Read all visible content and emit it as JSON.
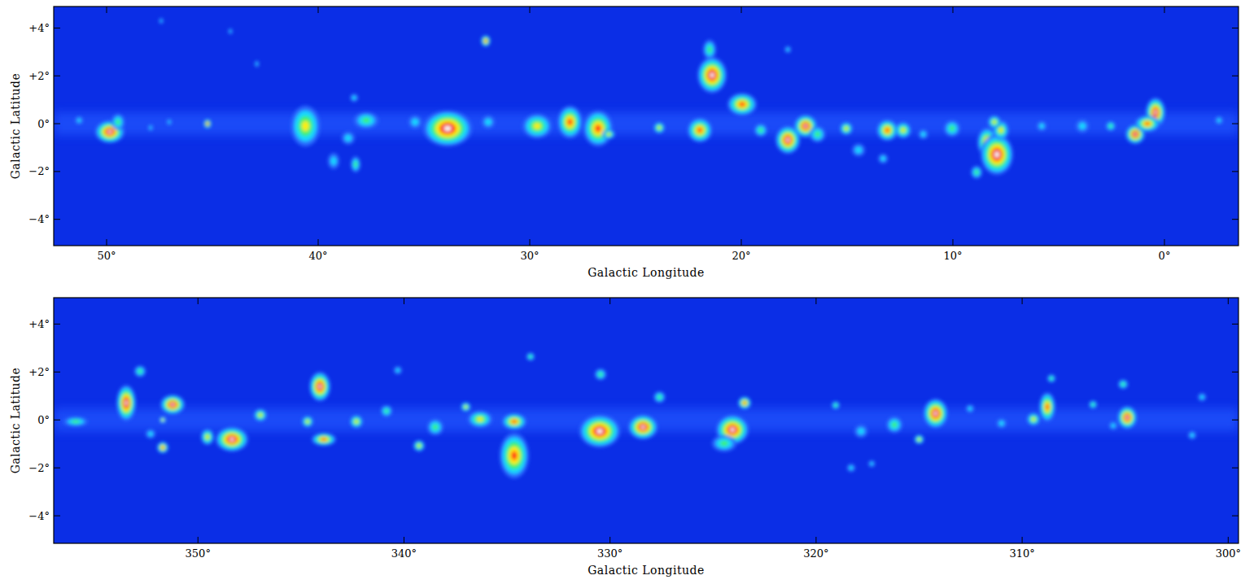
{
  "chart_data": [
    {
      "type": "heatmap",
      "x_label": "Galactic Longitude",
      "y_label": "Galactic Latitude",
      "xlim": [
        52.5,
        -3.5
      ],
      "ylim": [
        -5.1,
        4.9
      ],
      "xticks": [
        {
          "value": 50,
          "label": "50°"
        },
        {
          "value": 40,
          "label": "40°"
        },
        {
          "value": 30,
          "label": "30°"
        },
        {
          "value": 20,
          "label": "20°"
        },
        {
          "value": 10,
          "label": "10°"
        },
        {
          "value": 0,
          "label": "0°"
        }
      ],
      "yticks": [
        {
          "value": 4,
          "label": "+4°"
        },
        {
          "value": 2,
          "label": "+2°"
        },
        {
          "value": 0,
          "label": "0°"
        },
        {
          "value": -2,
          "label": "−2°"
        },
        {
          "value": -4,
          "label": "−4°"
        }
      ],
      "sources": [
        {
          "l": 49.85,
          "b": -0.34,
          "w": 0.69,
          "h": 0.47,
          "peak": 6
        },
        {
          "l": 49.46,
          "b": 0.07,
          "w": 0.31,
          "h": 0.34,
          "peak": 3
        },
        {
          "l": 51.3,
          "b": 0.14,
          "w": 0.19,
          "h": 0.17,
          "peak": 2
        },
        {
          "l": 47.92,
          "b": -0.17,
          "w": 0.12,
          "h": 0.14,
          "peak": 2
        },
        {
          "l": 47.04,
          "b": 0.07,
          "w": 0.12,
          "h": 0.14,
          "peak": 2
        },
        {
          "l": 45.23,
          "b": 0,
          "w": 0.19,
          "h": 0.2,
          "peak": 5
        },
        {
          "l": 47.42,
          "b": 4.3,
          "w": 0.1,
          "h": 0.12,
          "peak": 2
        },
        {
          "l": 44.15,
          "b": 3.86,
          "w": 0.1,
          "h": 0.12,
          "peak": 2
        },
        {
          "l": 42.9,
          "b": 2.5,
          "w": 0.1,
          "h": 0.14,
          "peak": 2
        },
        {
          "l": 40.6,
          "b": -0.1,
          "w": 0.69,
          "h": 0.85,
          "peak": 4
        },
        {
          "l": 39.27,
          "b": -1.56,
          "w": 0.27,
          "h": 0.34,
          "peak": 2
        },
        {
          "l": 38.23,
          "b": -1.7,
          "w": 0.23,
          "h": 0.34,
          "peak": 3
        },
        {
          "l": 38.3,
          "b": 1.08,
          "w": 0.19,
          "h": 0.17,
          "peak": 2
        },
        {
          "l": 37.73,
          "b": 0.14,
          "w": 0.58,
          "h": 0.34,
          "peak": 3
        },
        {
          "l": 38.58,
          "b": -0.6,
          "w": 0.31,
          "h": 0.27,
          "peak": 2
        },
        {
          "l": 32.08,
          "b": 3.46,
          "w": 0.23,
          "h": 0.24,
          "peak": 5
        },
        {
          "l": 33.88,
          "b": -0.2,
          "w": 1.15,
          "h": 0.75,
          "peak": 6
        },
        {
          "l": 31.96,
          "b": 0.07,
          "w": 0.31,
          "h": 0.27,
          "peak": 2
        },
        {
          "l": 35.42,
          "b": 0.07,
          "w": 0.31,
          "h": 0.27,
          "peak": 2
        },
        {
          "l": 29.65,
          "b": -0.1,
          "w": 0.69,
          "h": 0.51,
          "peak": 4
        },
        {
          "l": 28.1,
          "b": 0.07,
          "w": 0.58,
          "h": 0.68,
          "peak": 5
        },
        {
          "l": 26.77,
          "b": -0.2,
          "w": 0.69,
          "h": 0.75,
          "peak": 5
        },
        {
          "l": 26.27,
          "b": -0.44,
          "w": 0.31,
          "h": 0.2,
          "peak": 4
        },
        {
          "l": 23.88,
          "b": -0.17,
          "w": 0.27,
          "h": 0.24,
          "peak": 4
        },
        {
          "l": 21.96,
          "b": -0.27,
          "w": 0.58,
          "h": 0.51,
          "peak": 5
        },
        {
          "l": 21.38,
          "b": 2.03,
          "w": 0.69,
          "h": 0.75,
          "peak": 6
        },
        {
          "l": 21.5,
          "b": 3.1,
          "w": 0.31,
          "h": 0.41,
          "peak": 3
        },
        {
          "l": 19.96,
          "b": 0.81,
          "w": 0.69,
          "h": 0.47,
          "peak": 5
        },
        {
          "l": 17.8,
          "b": -0.68,
          "w": 0.58,
          "h": 0.58,
          "peak": 6
        },
        {
          "l": 16.96,
          "b": -0.1,
          "w": 0.54,
          "h": 0.47,
          "peak": 6
        },
        {
          "l": 19.08,
          "b": -0.27,
          "w": 0.31,
          "h": 0.27,
          "peak": 3
        },
        {
          "l": 16.4,
          "b": -0.44,
          "w": 0.38,
          "h": 0.34,
          "peak": 3
        },
        {
          "l": 17.8,
          "b": 3.1,
          "w": 0.15,
          "h": 0.14,
          "peak": 2
        },
        {
          "l": 15.04,
          "b": -0.2,
          "w": 0.31,
          "h": 0.27,
          "peak": 4
        },
        {
          "l": 13.1,
          "b": -0.27,
          "w": 0.5,
          "h": 0.44,
          "peak": 5
        },
        {
          "l": 12.35,
          "b": -0.27,
          "w": 0.38,
          "h": 0.34,
          "peak": 4
        },
        {
          "l": 14.46,
          "b": -1.1,
          "w": 0.31,
          "h": 0.27,
          "peak": 2
        },
        {
          "l": 10.04,
          "b": -0.2,
          "w": 0.38,
          "h": 0.34,
          "peak": 3
        },
        {
          "l": 8.38,
          "b": -0.78,
          "w": 0.46,
          "h": 0.61,
          "peak": 5
        },
        {
          "l": 7.92,
          "b": -1.29,
          "w": 0.77,
          "h": 0.85,
          "peak": 6
        },
        {
          "l": 7.73,
          "b": -0.27,
          "w": 0.38,
          "h": 0.41,
          "peak": 4
        },
        {
          "l": 8.88,
          "b": -2.03,
          "w": 0.27,
          "h": 0.27,
          "peak": 3
        },
        {
          "l": 8.04,
          "b": 0.07,
          "w": 0.31,
          "h": 0.27,
          "peak": 4
        },
        {
          "l": 5.8,
          "b": -0.1,
          "w": 0.23,
          "h": 0.2,
          "peak": 2
        },
        {
          "l": 3.88,
          "b": -0.1,
          "w": 0.31,
          "h": 0.27,
          "peak": 2
        },
        {
          "l": 2.54,
          "b": -0.1,
          "w": 0.23,
          "h": 0.2,
          "peak": 3
        },
        {
          "l": 1.38,
          "b": -0.44,
          "w": 0.46,
          "h": 0.41,
          "peak": 6
        },
        {
          "l": 0.42,
          "b": 0.47,
          "w": 0.46,
          "h": 0.61,
          "peak": 6
        },
        {
          "l": 0.81,
          "b": 0,
          "w": 0.58,
          "h": 0.34,
          "peak": 5
        },
        {
          "l": -2.58,
          "b": 0.14,
          "w": 0.19,
          "h": 0.17,
          "peak": 2
        },
        {
          "l": 13.3,
          "b": -1.46,
          "w": 0.23,
          "h": 0.2,
          "peak": 2
        },
        {
          "l": 11.4,
          "b": -0.44,
          "w": 0.23,
          "h": 0.2,
          "peak": 2
        }
      ]
    },
    {
      "type": "heatmap",
      "x_label": "Galactic Longitude",
      "y_label": "Galactic Latitude",
      "xlim": [
        357,
        299.5
      ],
      "ylim": [
        -5.15,
        5.1
      ],
      "xticks": [
        {
          "value": 350,
          "label": "350°"
        },
        {
          "value": 340,
          "label": "340°"
        },
        {
          "value": 330,
          "label": "330°"
        },
        {
          "value": 320,
          "label": "320°"
        },
        {
          "value": 310,
          "label": "310°"
        },
        {
          "value": 300,
          "label": "300°"
        }
      ],
      "yticks": [
        {
          "value": 4,
          "label": "+4°"
        },
        {
          "value": 2,
          "label": "+2°"
        },
        {
          "value": 0,
          "label": "0°"
        },
        {
          "value": -2,
          "label": "−2°"
        },
        {
          "value": -4,
          "label": "−4°"
        }
      ],
      "sources": [
        {
          "l": 353.48,
          "b": 0.71,
          "w": 0.47,
          "h": 0.75,
          "peak": 6
        },
        {
          "l": 351.23,
          "b": 0.64,
          "w": 0.59,
          "h": 0.41,
          "peak": 6
        },
        {
          "l": 352.81,
          "b": 2.03,
          "w": 0.28,
          "h": 0.24,
          "peak": 3
        },
        {
          "l": 351.71,
          "b": -1.15,
          "w": 0.28,
          "h": 0.24,
          "peak": 5
        },
        {
          "l": 351.71,
          "b": 0,
          "w": 0.16,
          "h": 0.14,
          "peak": 4
        },
        {
          "l": 352.3,
          "b": -0.58,
          "w": 0.24,
          "h": 0.2,
          "peak": 2
        },
        {
          "l": 349.54,
          "b": -0.71,
          "w": 0.32,
          "h": 0.34,
          "peak": 4
        },
        {
          "l": 348.35,
          "b": -0.81,
          "w": 0.79,
          "h": 0.51,
          "peak": 6
        },
        {
          "l": 346.97,
          "b": 0.2,
          "w": 0.32,
          "h": 0.27,
          "peak": 4
        },
        {
          "l": 344.68,
          "b": -0.07,
          "w": 0.28,
          "h": 0.24,
          "peak": 4
        },
        {
          "l": 344.08,
          "b": 1.39,
          "w": 0.51,
          "h": 0.61,
          "peak": 6
        },
        {
          "l": 343.89,
          "b": -0.81,
          "w": 0.59,
          "h": 0.27,
          "peak": 5
        },
        {
          "l": 342.31,
          "b": -0.07,
          "w": 0.32,
          "h": 0.27,
          "peak": 4
        },
        {
          "l": 340.85,
          "b": 0.37,
          "w": 0.28,
          "h": 0.24,
          "peak": 3
        },
        {
          "l": 339.27,
          "b": -1.08,
          "w": 0.28,
          "h": 0.24,
          "peak": 4
        },
        {
          "l": 338.48,
          "b": -0.3,
          "w": 0.39,
          "h": 0.34,
          "peak": 3
        },
        {
          "l": 337.0,
          "b": 0.54,
          "w": 0.24,
          "h": 0.2,
          "peak": 4
        },
        {
          "l": 336.31,
          "b": 0.03,
          "w": 0.59,
          "h": 0.34,
          "peak": 4
        },
        {
          "l": 334.65,
          "b": -0.07,
          "w": 0.59,
          "h": 0.34,
          "peak": 5
        },
        {
          "l": 334.65,
          "b": -1.49,
          "w": 0.71,
          "h": 0.95,
          "peak": 5
        },
        {
          "l": 333.86,
          "b": 2.64,
          "w": 0.2,
          "h": 0.17,
          "peak": 3
        },
        {
          "l": 330.5,
          "b": -0.47,
          "w": 0.99,
          "h": 0.68,
          "peak": 6
        },
        {
          "l": 330.46,
          "b": 1.9,
          "w": 0.28,
          "h": 0.24,
          "peak": 3
        },
        {
          "l": 328.4,
          "b": -0.3,
          "w": 0.71,
          "h": 0.51,
          "peak": 6
        },
        {
          "l": 327.6,
          "b": 0.95,
          "w": 0.28,
          "h": 0.24,
          "peak": 3
        },
        {
          "l": 324.06,
          "b": -0.41,
          "w": 0.79,
          "h": 0.61,
          "peak": 6
        },
        {
          "l": 323.47,
          "b": 0.71,
          "w": 0.32,
          "h": 0.27,
          "peak": 5
        },
        {
          "l": 324.46,
          "b": -0.98,
          "w": 0.59,
          "h": 0.34,
          "peak": 3
        },
        {
          "l": 319.05,
          "b": 0.61,
          "w": 0.2,
          "h": 0.17,
          "peak": 3
        },
        {
          "l": 317.82,
          "b": -0.47,
          "w": 0.32,
          "h": 0.27,
          "peak": 2
        },
        {
          "l": 316.2,
          "b": -0.2,
          "w": 0.39,
          "h": 0.34,
          "peak": 3
        },
        {
          "l": 315.0,
          "b": -0.81,
          "w": 0.24,
          "h": 0.2,
          "peak": 4
        },
        {
          "l": 314.2,
          "b": 0.27,
          "w": 0.59,
          "h": 0.61,
          "peak": 6
        },
        {
          "l": 312.53,
          "b": 0.47,
          "w": 0.2,
          "h": 0.17,
          "peak": 2
        },
        {
          "l": 309.45,
          "b": 0.03,
          "w": 0.32,
          "h": 0.27,
          "peak": 4
        },
        {
          "l": 308.78,
          "b": 0.54,
          "w": 0.39,
          "h": 0.61,
          "peak": 5
        },
        {
          "l": 308.58,
          "b": 1.73,
          "w": 0.2,
          "h": 0.17,
          "peak": 3
        },
        {
          "l": 306.56,
          "b": 0.64,
          "w": 0.2,
          "h": 0.17,
          "peak": 3
        },
        {
          "l": 304.9,
          "b": 0.1,
          "w": 0.47,
          "h": 0.47,
          "peak": 6
        },
        {
          "l": 305.1,
          "b": 1.49,
          "w": 0.24,
          "h": 0.2,
          "peak": 3
        },
        {
          "l": 301.27,
          "b": 0.95,
          "w": 0.2,
          "h": 0.17,
          "peak": 2
        },
        {
          "l": 301.75,
          "b": -0.64,
          "w": 0.2,
          "h": 0.17,
          "peak": 2
        },
        {
          "l": 305.58,
          "b": -0.24,
          "w": 0.2,
          "h": 0.17,
          "peak": 2
        },
        {
          "l": 317.3,
          "b": -1.83,
          "w": 0.16,
          "h": 0.14,
          "peak": 2
        },
        {
          "l": 318.3,
          "b": -2.0,
          "w": 0.2,
          "h": 0.17,
          "peak": 2
        },
        {
          "l": 355.93,
          "b": -0.07,
          "w": 0.59,
          "h": 0.2,
          "peak": 3
        },
        {
          "l": 311.0,
          "b": -0.14,
          "w": 0.24,
          "h": 0.2,
          "peak": 2
        },
        {
          "l": 340.3,
          "b": 2.07,
          "w": 0.2,
          "h": 0.17,
          "peak": 2
        }
      ]
    }
  ]
}
